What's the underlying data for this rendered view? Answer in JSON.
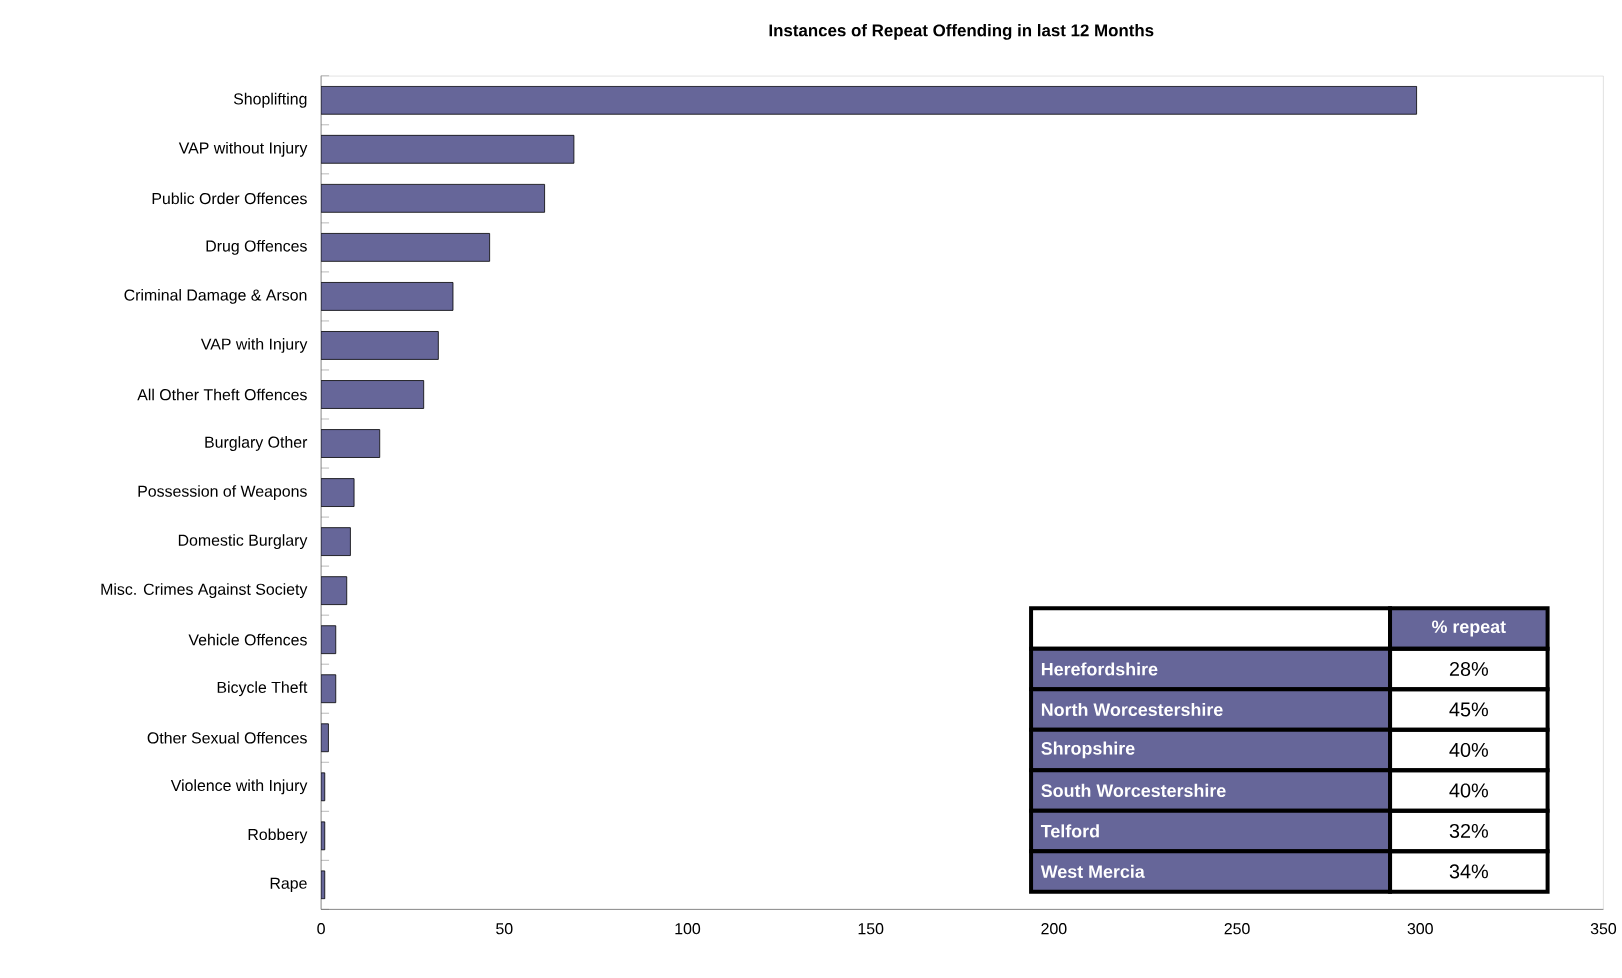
{
  "chart_data": {
    "type": "bar",
    "orientation": "horizontal",
    "title": "Instances of Repeat Offending in last 12 Months",
    "categories": [
      "Shoplifting",
      "VAP without Injury",
      "Public Order Offences",
      "Drug Offences",
      "Criminal Damage & Arson",
      "VAP with Injury",
      "All Other Theft Offences",
      "Burglary Other",
      "Possession of Weapons",
      "Domestic Burglary",
      "Misc. Crimes Against Society",
      "Vehicle Offences",
      "Bicycle Theft",
      "Other Sexual Offences",
      "Violence with Injury",
      "Robbery",
      "Rape"
    ],
    "values": [
      299,
      69,
      61,
      46,
      36,
      32,
      28,
      16,
      9,
      8,
      7,
      4,
      4,
      2,
      1,
      1,
      1
    ],
    "color": "#666699",
    "xlim": [
      0,
      350
    ],
    "xticks": [
      0,
      50,
      100,
      150,
      200,
      250,
      300,
      350
    ],
    "annotations": [
      "% repeat",
      "Herefordshire",
      "28%",
      "North Worcestershire",
      "45%",
      "Shropshire",
      "40%",
      "South Worcestershire",
      "40%",
      "Telford",
      "32%",
      "West Mercia",
      "34%"
    ]
  }
}
